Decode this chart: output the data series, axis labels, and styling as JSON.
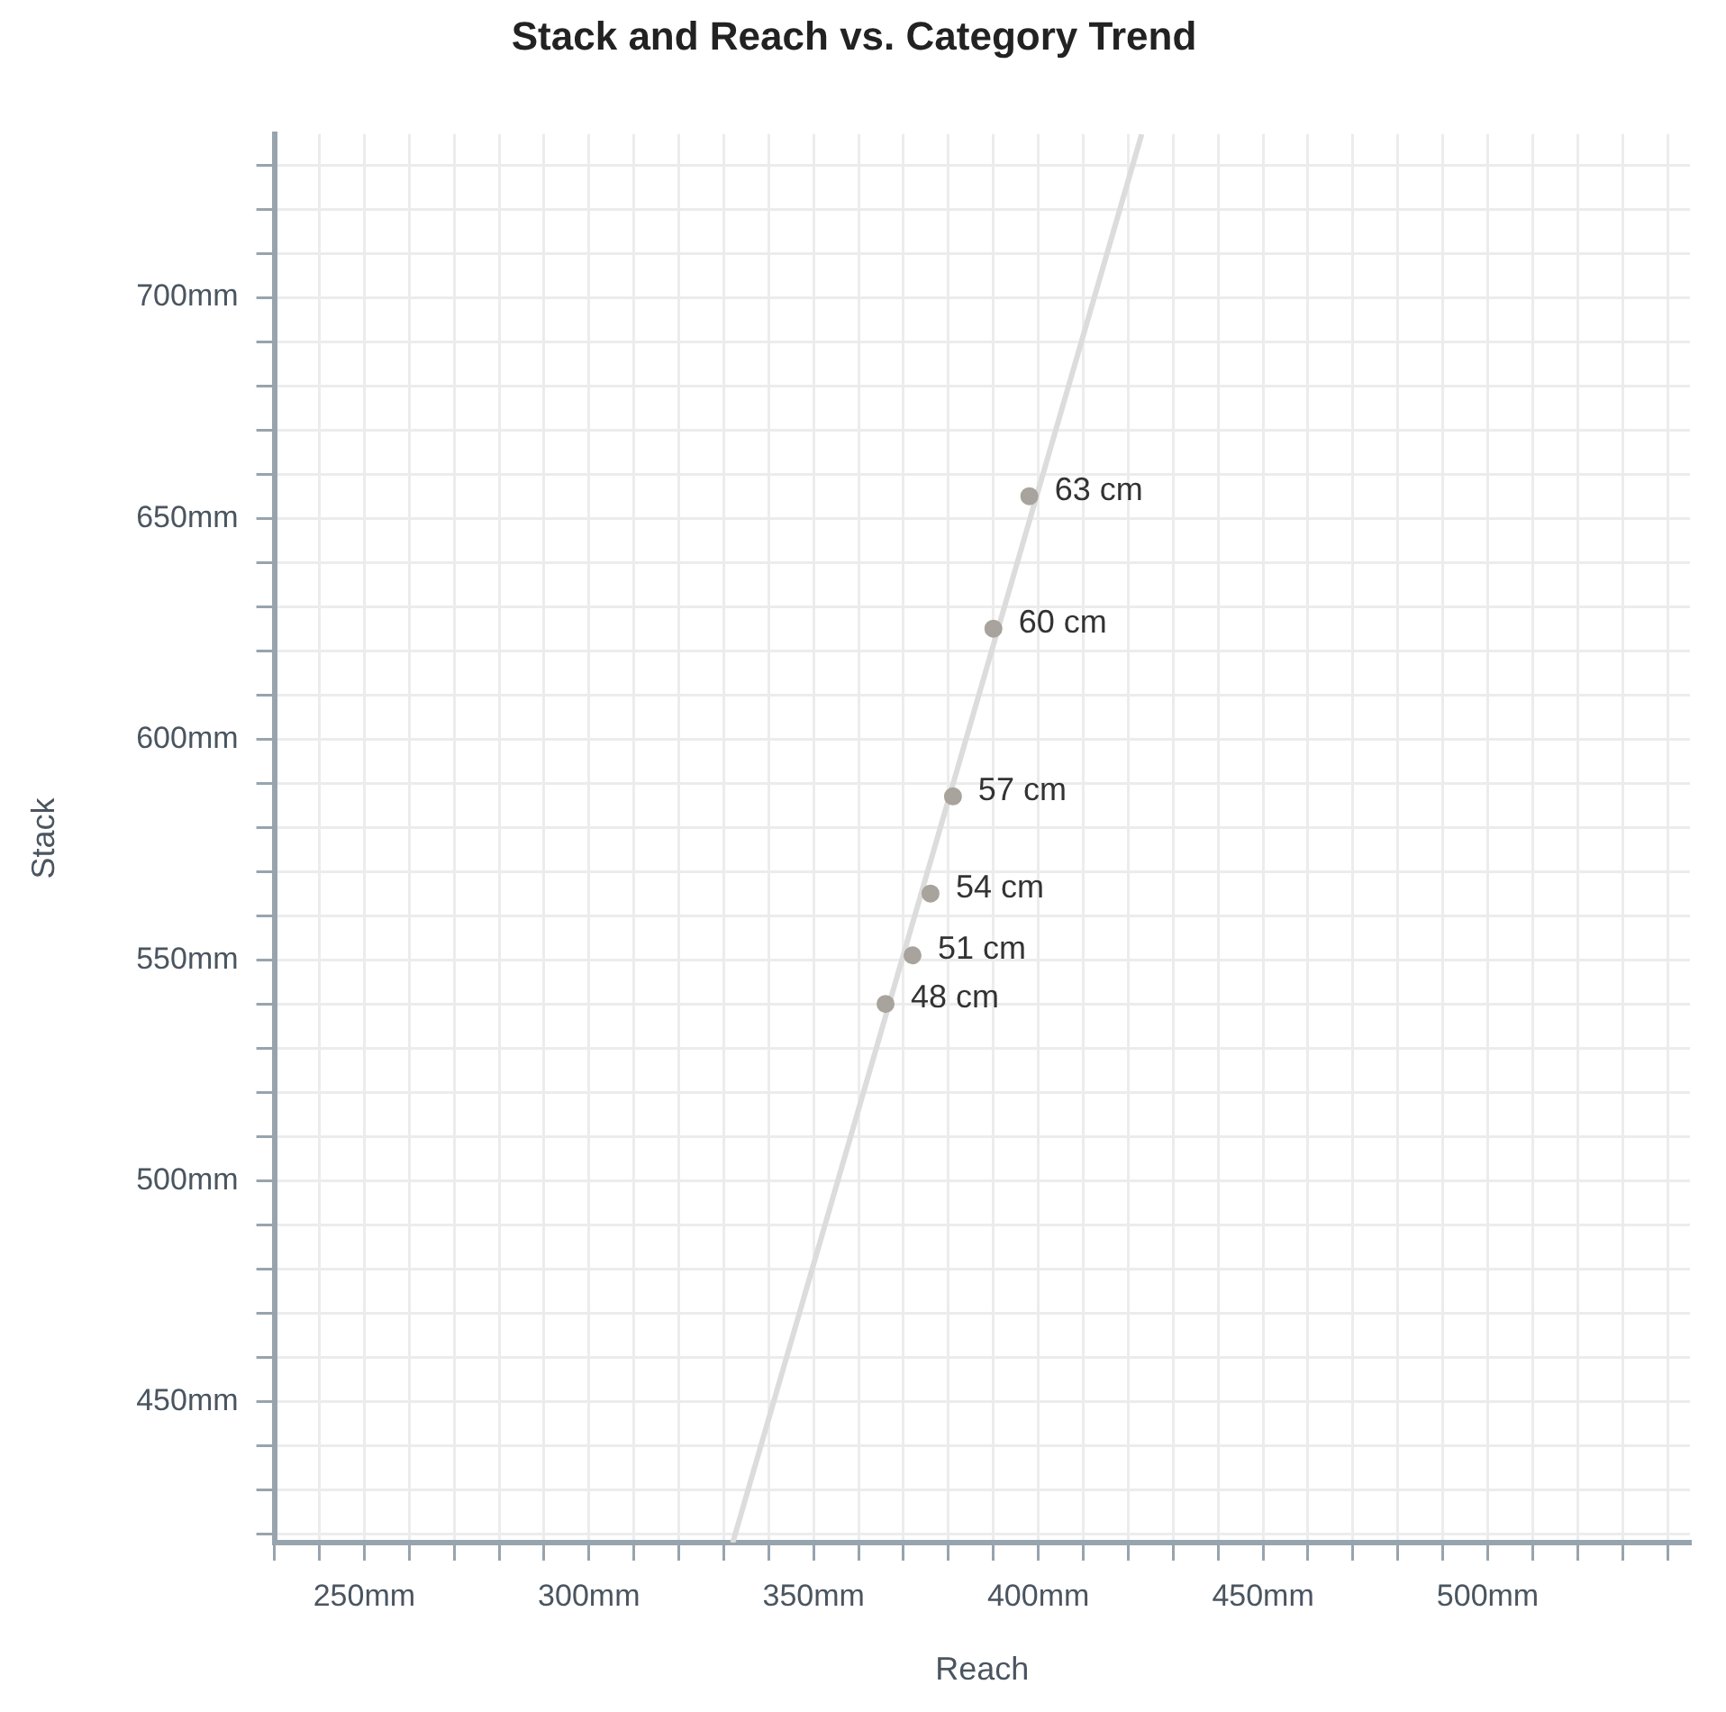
{
  "chart_data": {
    "type": "scatter",
    "title": "Stack and Reach vs. Category Trend",
    "xlabel": "Reach",
    "ylabel": "Stack",
    "xlim": [
      230,
      545
    ],
    "ylim": [
      418,
      737
    ],
    "xticks": [
      {
        "value": 230,
        "label": null
      },
      {
        "value": 240,
        "label": null
      },
      {
        "value": 250,
        "label": "250mm"
      },
      {
        "value": 260,
        "label": null
      },
      {
        "value": 270,
        "label": null
      },
      {
        "value": 280,
        "label": null
      },
      {
        "value": 290,
        "label": null
      },
      {
        "value": 300,
        "label": "300mm"
      },
      {
        "value": 310,
        "label": null
      },
      {
        "value": 320,
        "label": null
      },
      {
        "value": 330,
        "label": null
      },
      {
        "value": 340,
        "label": null
      },
      {
        "value": 350,
        "label": "350mm"
      },
      {
        "value": 360,
        "label": null
      },
      {
        "value": 370,
        "label": null
      },
      {
        "value": 380,
        "label": null
      },
      {
        "value": 390,
        "label": null
      },
      {
        "value": 400,
        "label": "400mm"
      },
      {
        "value": 410,
        "label": null
      },
      {
        "value": 420,
        "label": null
      },
      {
        "value": 430,
        "label": null
      },
      {
        "value": 440,
        "label": null
      },
      {
        "value": 450,
        "label": "450mm"
      },
      {
        "value": 460,
        "label": null
      },
      {
        "value": 470,
        "label": null
      },
      {
        "value": 480,
        "label": null
      },
      {
        "value": 490,
        "label": null
      },
      {
        "value": 500,
        "label": "500mm"
      },
      {
        "value": 510,
        "label": null
      },
      {
        "value": 520,
        "label": null
      },
      {
        "value": 530,
        "label": null
      },
      {
        "value": 540,
        "label": null
      }
    ],
    "yticks": [
      {
        "value": 420,
        "label": null
      },
      {
        "value": 430,
        "label": null
      },
      {
        "value": 440,
        "label": null
      },
      {
        "value": 450,
        "label": "450mm"
      },
      {
        "value": 460,
        "label": null
      },
      {
        "value": 470,
        "label": null
      },
      {
        "value": 480,
        "label": null
      },
      {
        "value": 490,
        "label": null
      },
      {
        "value": 500,
        "label": "500mm"
      },
      {
        "value": 510,
        "label": null
      },
      {
        "value": 520,
        "label": null
      },
      {
        "value": 530,
        "label": null
      },
      {
        "value": 540,
        "label": null
      },
      {
        "value": 550,
        "label": "550mm"
      },
      {
        "value": 560,
        "label": null
      },
      {
        "value": 570,
        "label": null
      },
      {
        "value": 580,
        "label": null
      },
      {
        "value": 590,
        "label": null
      },
      {
        "value": 600,
        "label": "600mm"
      },
      {
        "value": 610,
        "label": null
      },
      {
        "value": 620,
        "label": null
      },
      {
        "value": 630,
        "label": null
      },
      {
        "value": 640,
        "label": null
      },
      {
        "value": 650,
        "label": "650mm"
      },
      {
        "value": 660,
        "label": null
      },
      {
        "value": 670,
        "label": null
      },
      {
        "value": 680,
        "label": null
      },
      {
        "value": 690,
        "label": null
      },
      {
        "value": 700,
        "label": "700mm"
      },
      {
        "value": 710,
        "label": null
      },
      {
        "value": 720,
        "label": null
      },
      {
        "value": 730,
        "label": null
      }
    ],
    "annotations": [
      {
        "text": "48 cm",
        "x": 366,
        "y": 540
      },
      {
        "text": "51 cm",
        "x": 372,
        "y": 551
      },
      {
        "text": "54 cm",
        "x": 376,
        "y": 565
      },
      {
        "text": "57 cm",
        "x": 381,
        "y": 587
      },
      {
        "text": "60 cm",
        "x": 390,
        "y": 625
      },
      {
        "text": "63 cm",
        "x": 398,
        "y": 655
      }
    ],
    "grid": true,
    "legend": false,
    "marker": "circle",
    "series": [
      {
        "type": "line",
        "color": "#dcdcdc",
        "x": [
          332,
          423
        ],
        "values": [
          418,
          737
        ],
        "marker": "none",
        "line_style": "solid"
      },
      {
        "color": "#a8a39c",
        "x": [
          366,
          372,
          376,
          381,
          390,
          398
        ],
        "values": [
          540,
          551,
          565,
          587,
          625,
          655
        ]
      }
    ]
  }
}
